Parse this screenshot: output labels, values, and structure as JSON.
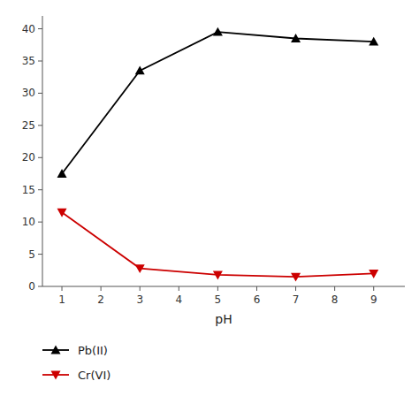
{
  "chart_data": {
    "type": "line",
    "x_label": "pH",
    "x": [
      1,
      3,
      5,
      7,
      9
    ],
    "series": [
      {
        "name": "Pb(II)",
        "color": "#000000",
        "marker": "triangle-up",
        "values": [
          17.5,
          33.5,
          39.5,
          38.5,
          38.0
        ]
      },
      {
        "name": "Cr(VI)",
        "color": "#cc0000",
        "marker": "triangle-down",
        "values": [
          11.5,
          2.8,
          1.8,
          1.5,
          2.0
        ]
      }
    ],
    "xlim": [
      0.5,
      9.8
    ],
    "ylim": [
      0,
      42
    ],
    "xticks": [
      1,
      2,
      3,
      4,
      5,
      6,
      7,
      8,
      9
    ],
    "yticks": [
      0,
      5,
      10,
      15,
      20,
      25,
      30,
      35,
      40
    ],
    "grid": false,
    "legend": "bottom"
  }
}
